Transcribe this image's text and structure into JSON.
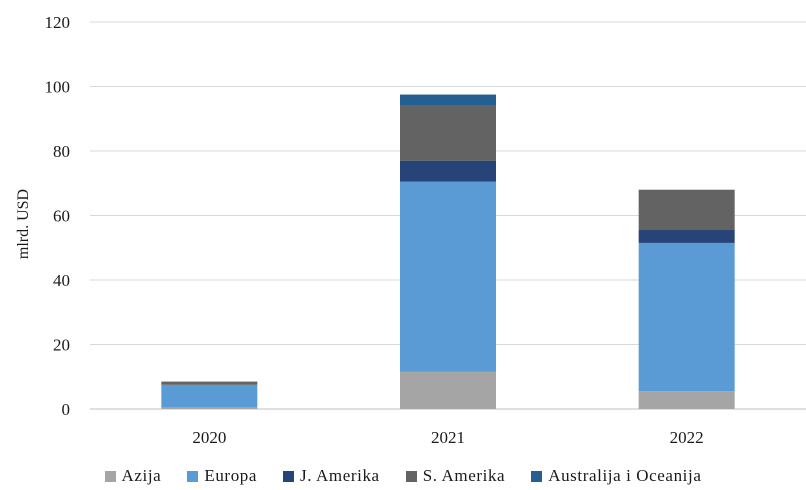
{
  "chart_data": {
    "type": "bar",
    "stacked": true,
    "categories": [
      "2020",
      "2021",
      "2022"
    ],
    "ylabel": "mlrd. USD",
    "ylim": [
      0,
      120
    ],
    "yticks": [
      "0",
      "20",
      "40",
      "60",
      "80",
      "100",
      "120"
    ],
    "grid": true,
    "legend_position": "bottom",
    "series": [
      {
        "name": "Azija",
        "color": "#a5a5a5",
        "values": [
          0.5,
          11.5,
          5.5
        ]
      },
      {
        "name": "Europa",
        "color": "#5b9bd5",
        "values": [
          7,
          59,
          46
        ]
      },
      {
        "name": "J. Amerika",
        "color": "#264478",
        "values": [
          0,
          6.5,
          4
        ]
      },
      {
        "name": "S. Amerika",
        "color": "#636363",
        "values": [
          1,
          17,
          12.5
        ]
      },
      {
        "name": "Australija i Oceanija",
        "color": "#255e91",
        "values": [
          0,
          3.5,
          0
        ]
      }
    ]
  }
}
